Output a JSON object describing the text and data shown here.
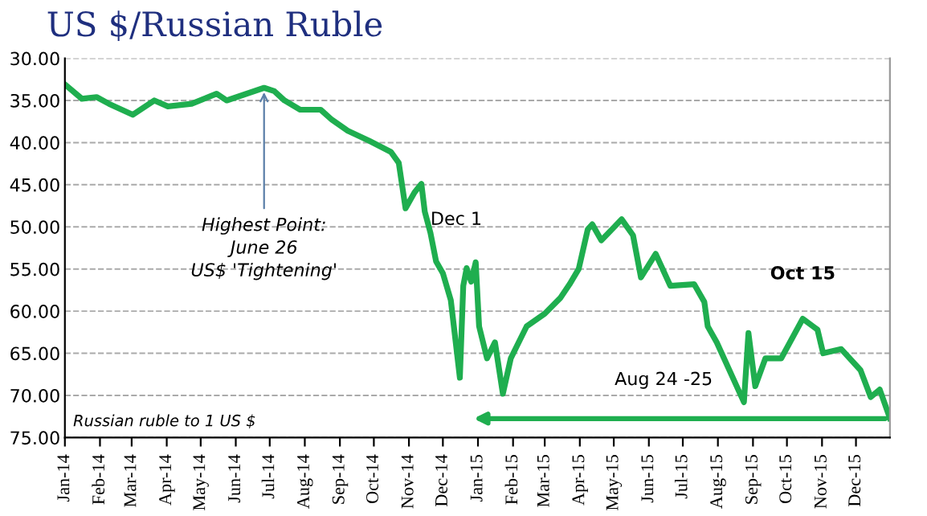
{
  "chart_data": {
    "type": "line",
    "title": "US $/Russian Ruble",
    "x": [
      "2014-01-01",
      "2014-01-16",
      "2014-01-29",
      "2014-02-09",
      "2014-03-02",
      "2014-03-21",
      "2014-04-02",
      "2014-04-23",
      "2014-05-15",
      "2014-05-24",
      "2014-06-26",
      "2014-07-05",
      "2014-07-14",
      "2014-07-28",
      "2014-08-15",
      "2014-08-25",
      "2014-09-08",
      "2014-09-27",
      "2014-10-16",
      "2014-10-23",
      "2014-10-29",
      "2014-11-06",
      "2014-11-12",
      "2014-11-15",
      "2014-11-20",
      "2014-11-25",
      "2014-12-01",
      "2014-12-08",
      "2014-12-16",
      "2014-12-19",
      "2014-12-22",
      "2014-12-26",
      "2014-12-30",
      "2015-01-02",
      "2015-01-09",
      "2015-01-16",
      "2015-01-23",
      "2015-01-30",
      "2015-02-13",
      "2015-03-01",
      "2015-03-15",
      "2015-03-23",
      "2015-03-31",
      "2015-04-08",
      "2015-04-12",
      "2015-04-20",
      "2015-05-08",
      "2015-05-18",
      "2015-05-25",
      "2015-06-07",
      "2015-06-20",
      "2015-07-11",
      "2015-07-20",
      "2015-07-23",
      "2015-07-31",
      "2015-08-24",
      "2015-08-28",
      "2015-09-03",
      "2015-09-12",
      "2015-09-26",
      "2015-10-15",
      "2015-10-28",
      "2015-11-02",
      "2015-11-18",
      "2015-12-05",
      "2015-12-14",
      "2015-12-22",
      "2015-12-31"
    ],
    "series": [
      {
        "color": "#1fae4f",
        "values": [
          33.1,
          34.8,
          34.6,
          35.4,
          36.7,
          35.0,
          35.7,
          35.4,
          34.2,
          35.0,
          33.5,
          33.9,
          35.0,
          36.1,
          36.1,
          37.3,
          38.6,
          39.8,
          41.1,
          42.4,
          47.8,
          45.9,
          44.9,
          48.2,
          50.7,
          54.1,
          55.5,
          58.7,
          67.9,
          57.0,
          54.9,
          56.5,
          54.2,
          61.8,
          65.6,
          63.7,
          69.8,
          65.6,
          61.8,
          60.3,
          58.4,
          56.8,
          55.0,
          50.3,
          49.7,
          51.6,
          49.1,
          51.0,
          56.0,
          53.2,
          57.0,
          56.8,
          58.9,
          61.8,
          63.7,
          70.8,
          62.6,
          68.9,
          65.6,
          65.6,
          60.9,
          62.2,
          65.0,
          64.5,
          67.0,
          70.2,
          69.3,
          72.7
        ]
      }
    ],
    "xlim": [
      "2014-01-01",
      "2015-12-31"
    ],
    "xticks": [
      {
        "value": "2014-01-01",
        "label": "Jan-14"
      },
      {
        "value": "2014-02-01",
        "label": "Feb-14"
      },
      {
        "value": "2014-03-01",
        "label": "Mar-14"
      },
      {
        "value": "2014-04-01",
        "label": "Apr-14"
      },
      {
        "value": "2014-05-01",
        "label": "May-14"
      },
      {
        "value": "2014-06-01",
        "label": "Jun-14"
      },
      {
        "value": "2014-07-01",
        "label": "Jul-14"
      },
      {
        "value": "2014-08-01",
        "label": "Aug-14"
      },
      {
        "value": "2014-09-01",
        "label": "Sep-14"
      },
      {
        "value": "2014-10-01",
        "label": "Oct-14"
      },
      {
        "value": "2014-11-01",
        "label": "Nov-14"
      },
      {
        "value": "2014-12-01",
        "label": "Dec-14"
      },
      {
        "value": "2015-01-01",
        "label": "Jan-15"
      },
      {
        "value": "2015-02-01",
        "label": "Feb-15"
      },
      {
        "value": "2015-03-01",
        "label": "Mar-15"
      },
      {
        "value": "2015-04-01",
        "label": "Apr-15"
      },
      {
        "value": "2015-05-01",
        "label": "May-15"
      },
      {
        "value": "2015-06-01",
        "label": "Jun-15"
      },
      {
        "value": "2015-07-01",
        "label": "Jul-15"
      },
      {
        "value": "2015-08-01",
        "label": "Aug-15"
      },
      {
        "value": "2015-09-01",
        "label": "Sep-15"
      },
      {
        "value": "2015-10-01",
        "label": "Oct-15"
      },
      {
        "value": "2015-11-01",
        "label": "Nov-15"
      },
      {
        "value": "2015-12-01",
        "label": "Dec-15"
      }
    ],
    "ylim": [
      75,
      30
    ],
    "yticks": [
      {
        "value": 30,
        "label": "30.00"
      },
      {
        "value": 35,
        "label": "35.00"
      },
      {
        "value": 40,
        "label": "40.00"
      },
      {
        "value": 45,
        "label": "45.00"
      },
      {
        "value": 50,
        "label": "50.00"
      },
      {
        "value": 55,
        "label": "55.00"
      },
      {
        "value": 60,
        "label": "60.00"
      },
      {
        "value": 65,
        "label": "65.00"
      },
      {
        "value": 70,
        "label": "70.00"
      },
      {
        "value": 75,
        "label": "75.00"
      }
    ],
    "grid": "y",
    "line_style": "solid",
    "annotations": [
      {
        "text": "Highest Point:\nJune 26\nUS$ 'Tightening'",
        "x": "2014-06-26",
        "y": 33.5
      },
      {
        "text": "Dec 1",
        "x": "2014-12-01",
        "y": 55.5
      },
      {
        "text": "Oct 15",
        "x": "2015-10-15",
        "y": 60.9
      },
      {
        "text": "Aug 24 -25",
        "x": "2015-08-24",
        "y": 70.8
      },
      "Russian ruble to 1 US $"
    ]
  }
}
